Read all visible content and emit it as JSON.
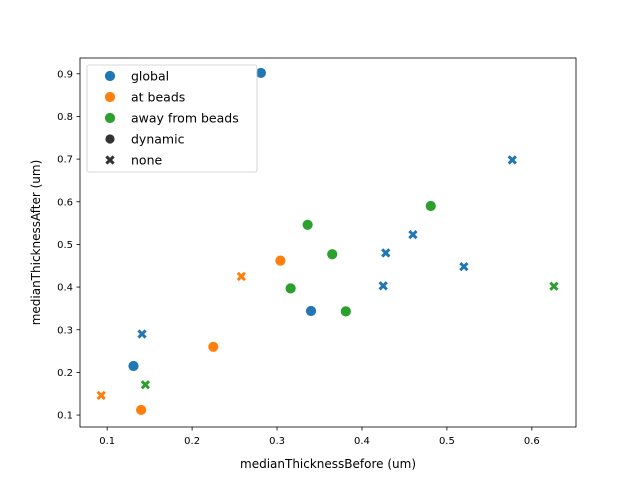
{
  "chart_data": {
    "type": "scatter",
    "title": "",
    "xlabel": "medianThicknessBefore (um)",
    "ylabel": "medianThicknessAfter (um)",
    "xlim": [
      0.068,
      0.652
    ],
    "ylim": [
      0.072,
      0.937
    ],
    "x_ticks": [
      0.1,
      0.2,
      0.3,
      0.4,
      0.5,
      0.6
    ],
    "y_ticks": [
      0.1,
      0.2,
      0.3,
      0.4,
      0.5,
      0.6,
      0.7,
      0.8,
      0.9
    ],
    "grid": false,
    "legend_position": "top-left",
    "legend": [
      {
        "label": "global",
        "kind": "hue",
        "color": "#1f77b4"
      },
      {
        "label": "at beads",
        "kind": "hue",
        "color": "#ff7f0e"
      },
      {
        "label": "away from beads",
        "kind": "hue",
        "color": "#2ca02c"
      },
      {
        "label": "dynamic",
        "kind": "style",
        "marker": "circle"
      },
      {
        "label": "none",
        "kind": "style",
        "marker": "x"
      }
    ],
    "series": [
      {
        "group": "global",
        "style": "dynamic",
        "color": "#1f77b4",
        "marker": "circle",
        "points": [
          [
            0.281,
            0.902
          ],
          [
            0.34,
            0.344
          ],
          [
            0.131,
            0.215
          ]
        ]
      },
      {
        "group": "global",
        "style": "none",
        "color": "#1f77b4",
        "marker": "x",
        "points": [
          [
            0.577,
            0.698
          ],
          [
            0.46,
            0.523
          ],
          [
            0.428,
            0.48
          ],
          [
            0.52,
            0.448
          ],
          [
            0.425,
            0.403
          ],
          [
            0.141,
            0.29
          ]
        ]
      },
      {
        "group": "at beads",
        "style": "dynamic",
        "color": "#ff7f0e",
        "marker": "circle",
        "points": [
          [
            0.304,
            0.462
          ],
          [
            0.225,
            0.26
          ],
          [
            0.14,
            0.112
          ]
        ]
      },
      {
        "group": "at beads",
        "style": "none",
        "color": "#ff7f0e",
        "marker": "x",
        "points": [
          [
            0.258,
            0.425
          ],
          [
            0.093,
            0.146
          ]
        ]
      },
      {
        "group": "away from beads",
        "style": "dynamic",
        "color": "#2ca02c",
        "marker": "circle",
        "points": [
          [
            0.481,
            0.59
          ],
          [
            0.336,
            0.546
          ],
          [
            0.365,
            0.477
          ],
          [
            0.316,
            0.397
          ],
          [
            0.381,
            0.343
          ]
        ]
      },
      {
        "group": "away from beads",
        "style": "none",
        "color": "#2ca02c",
        "marker": "x",
        "points": [
          [
            0.626,
            0.402
          ],
          [
            0.145,
            0.171
          ]
        ]
      }
    ]
  }
}
